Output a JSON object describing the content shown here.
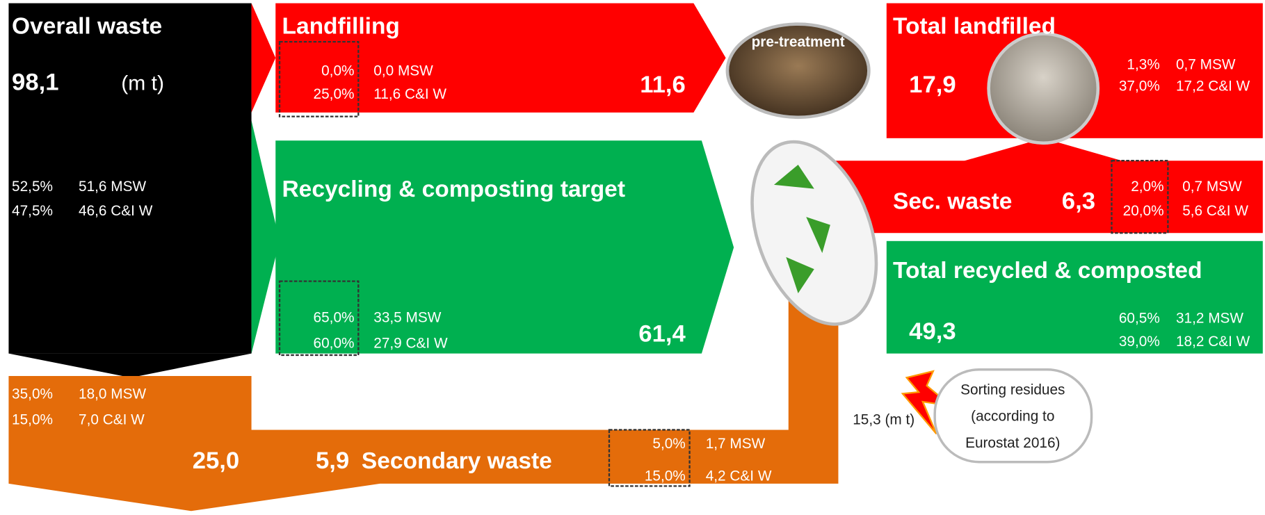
{
  "overall": {
    "title": "Overall waste",
    "total": "98,1",
    "unit": "(m t)",
    "rows": [
      [
        "52,5%",
        "51,6 MSW"
      ],
      [
        "47,5%",
        "46,6 C&I W"
      ]
    ]
  },
  "landfilling": {
    "title": "Landfilling",
    "rows": [
      [
        "0,0%",
        "0,0 MSW"
      ],
      [
        "25,0%",
        "11,6 C&I W"
      ]
    ],
    "total": "11,6"
  },
  "pretreatment": "pre-treatment",
  "recycling_target": {
    "title": "Recycling & composting target",
    "rows": [
      [
        "65,0%",
        "33,5 MSW"
      ],
      [
        "60,0%",
        "27,9 C&I W"
      ]
    ],
    "total": "61,4"
  },
  "total_landfilled": {
    "title": "Total landfilled",
    "total": "17,9",
    "rows": [
      [
        "1,3%",
        "0,7 MSW"
      ],
      [
        "37,0%",
        "17,2 C&I W"
      ]
    ]
  },
  "sec_waste": {
    "title": "Sec. waste",
    "total": "6,3",
    "rows": [
      [
        "2,0%",
        "0,7 MSW"
      ],
      [
        "20,0%",
        "5,6 C&I W"
      ]
    ]
  },
  "total_recycled": {
    "title": "Total recycled & composted",
    "total": "49,3",
    "rows": [
      [
        "60,5%",
        "31,2 MSW"
      ],
      [
        "39,0%",
        "18,2 C&I W"
      ]
    ]
  },
  "other": {
    "rows": [
      [
        "35,0%",
        "18,0 MSW"
      ],
      [
        "15,0%",
        "7,0 C&I W"
      ]
    ],
    "total": "25,0"
  },
  "secondary_waste": {
    "title": "Secondary waste",
    "total": "5,9",
    "rows": [
      [
        "5,0%",
        "1,7 MSW"
      ],
      [
        "15,0%",
        "4,2 C&I W"
      ]
    ]
  },
  "sorting": {
    "amount": "15,3 (m t)",
    "lines": [
      "Sorting residues",
      "(according to",
      "Eurostat 2016)"
    ]
  }
}
